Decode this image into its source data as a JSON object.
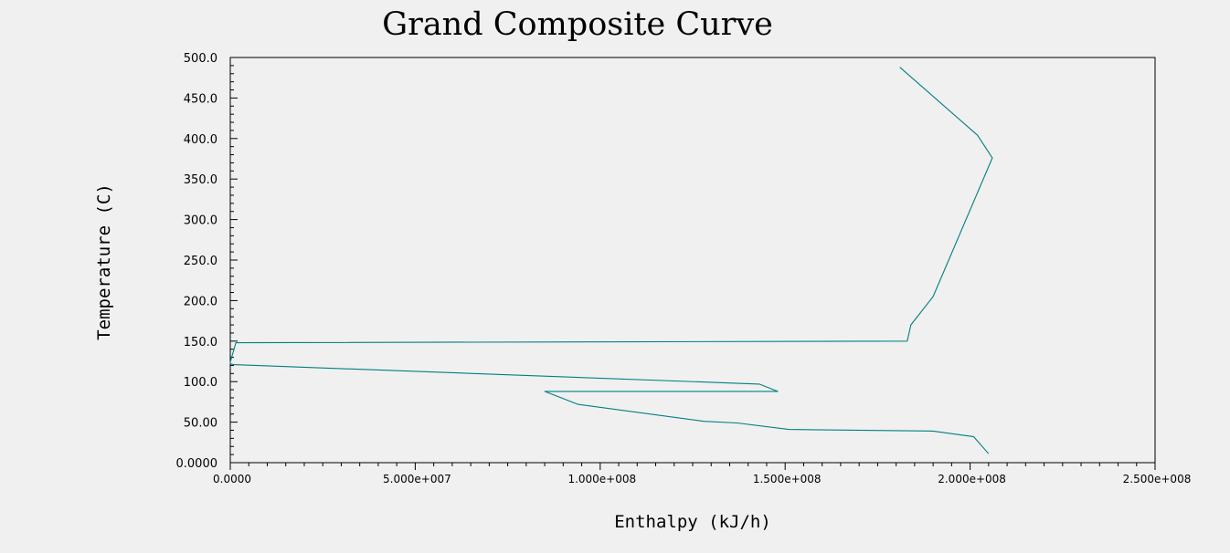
{
  "chart_data": {
    "type": "line",
    "title": "Grand Composite Curve",
    "xlabel": "Enthalpy (kJ/h)",
    "ylabel": "Temperature (C)",
    "xlim": [
      0,
      250000000
    ],
    "ylim": [
      0,
      500
    ],
    "grid": false,
    "x_tick_labels": [
      "0.0000",
      "5.000e+007",
      "1.000e+008",
      "1.500e+008",
      "2.000e+008",
      "2.500e+008"
    ],
    "x_tick_values": [
      0,
      50000000,
      100000000,
      150000000,
      200000000,
      250000000
    ],
    "y_tick_labels": [
      "0.0000",
      "50.00",
      "100.0",
      "150.0",
      "200.0",
      "250.0",
      "300.0",
      "350.0",
      "400.0",
      "450.0",
      "500.0"
    ],
    "y_tick_values": [
      0,
      50,
      100,
      150,
      200,
      250,
      300,
      350,
      400,
      450,
      500
    ],
    "series": [
      {
        "color": "#007f7f",
        "points": [
          [
            181000000,
            488
          ],
          [
            202000000,
            404
          ],
          [
            206000000,
            376
          ],
          [
            190000000,
            205
          ],
          [
            184000000,
            170
          ],
          [
            183000000,
            150
          ],
          [
            1500000,
            148
          ],
          [
            0,
            124
          ],
          [
            0,
            122
          ],
          [
            1000000,
            121
          ],
          [
            143000000,
            97
          ],
          [
            148000000,
            88
          ],
          [
            85000000,
            88
          ],
          [
            94000000,
            72
          ],
          [
            128000000,
            51
          ],
          [
            137000000,
            49
          ],
          [
            151000000,
            41
          ],
          [
            190000000,
            39
          ],
          [
            201000000,
            32
          ],
          [
            205000000,
            11
          ]
        ]
      }
    ]
  }
}
